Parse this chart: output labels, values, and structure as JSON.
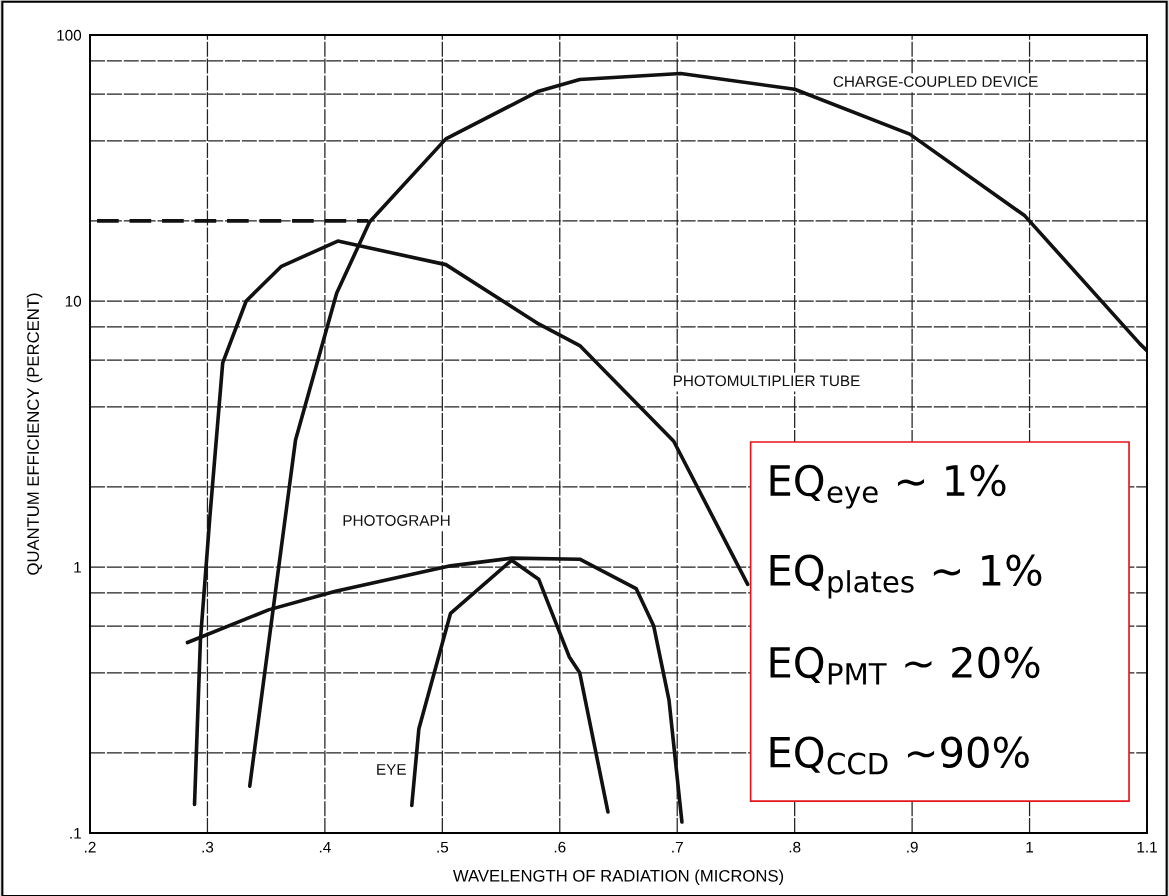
{
  "chart_data": {
    "type": "line",
    "xlabel": "WAVELENGTH OF RADIATION (MICRONS)",
    "ylabel": "QUANTUM EFFICIENCY (PERCENT)",
    "log": "y",
    "grid": true,
    "marker": "none",
    "xlim": [
      0.2,
      1.1
    ],
    "ylim": [
      0.1,
      100
    ],
    "xticks": [
      {
        "value": 0.2,
        "label": ".2"
      },
      {
        "value": 0.3,
        "label": ".3"
      },
      {
        "value": 0.4,
        "label": ".4"
      },
      {
        "value": 0.5,
        "label": ".5"
      },
      {
        "value": 0.6,
        "label": ".6"
      },
      {
        "value": 0.7,
        "label": ".7"
      },
      {
        "value": 0.8,
        "label": ".8"
      },
      {
        "value": 0.9,
        "label": ".9"
      },
      1,
      1.1
    ],
    "yticks": [
      {
        "value": 0.1,
        "label": ".1"
      },
      {
        "value": 0.2,
        "label": null
      },
      {
        "value": 0.4,
        "label": null
      },
      {
        "value": 0.6,
        "label": null
      },
      {
        "value": 0.8,
        "label": null
      },
      1,
      {
        "value": 2,
        "label": null
      },
      {
        "value": 4,
        "label": null
      },
      {
        "value": 6,
        "label": null
      },
      {
        "value": 8,
        "label": null
      },
      10,
      {
        "value": 20,
        "label": null
      },
      {
        "value": 40,
        "label": null
      },
      {
        "value": 60,
        "label": null
      },
      {
        "value": 80,
        "label": null
      },
      100
    ],
    "series": [
      {
        "name": "CHARGE-COUPLED DEVICE",
        "color": "#111111",
        "x": [
          0.336,
          0.375,
          0.41,
          0.438,
          0.503,
          0.582,
          0.617,
          0.703,
          0.8,
          0.898,
          0.996,
          1.094,
          1.1
        ],
        "values": [
          0.15,
          3.0,
          10.7,
          19.8,
          40.7,
          61.5,
          68,
          71.7,
          62.5,
          42.4,
          20.9,
          6.9,
          6.5
        ]
      },
      {
        "name": "PHOTOMULTIPLIER TUBE",
        "color": "#111111",
        "x": [
          0.289,
          0.294,
          0.302,
          0.313,
          0.333,
          0.363,
          0.411,
          0.503,
          0.582,
          0.617,
          0.697,
          0.76
        ],
        "values": [
          0.128,
          0.53,
          1.53,
          5.85,
          10.0,
          13.5,
          16.8,
          13.7,
          8.2,
          6.8,
          2.97,
          0.86
        ]
      },
      {
        "name": "PHOTOGRAPH",
        "color": "#111111",
        "x": [
          0.283,
          0.352,
          0.409,
          0.507,
          0.559,
          0.617,
          0.665,
          0.68,
          0.693,
          0.704
        ],
        "values": [
          0.52,
          0.69,
          0.81,
          1.01,
          1.08,
          1.07,
          0.83,
          0.6,
          0.316,
          0.11
        ]
      },
      {
        "name": "EYE",
        "color": "#111111",
        "x": [
          0.474,
          0.48,
          0.507,
          0.559,
          0.582,
          0.608,
          0.617,
          0.641
        ],
        "values": [
          0.127,
          0.246,
          0.67,
          1.06,
          0.9,
          0.46,
          0.4,
          0.12
        ]
      },
      {
        "color": "#111111",
        "line_style": "dashed",
        "x": [
          0.206,
          0.437
        ],
        "values": [
          20,
          20
        ]
      }
    ],
    "annotations": [
      "EQ$_{eye}$ ~ 1%",
      "EQ$_{plates}$ ~ 1%",
      "EQ$_{PMT}$ ~ 20%",
      "EQ$_{CCD}$ ~90%"
    ]
  }
}
